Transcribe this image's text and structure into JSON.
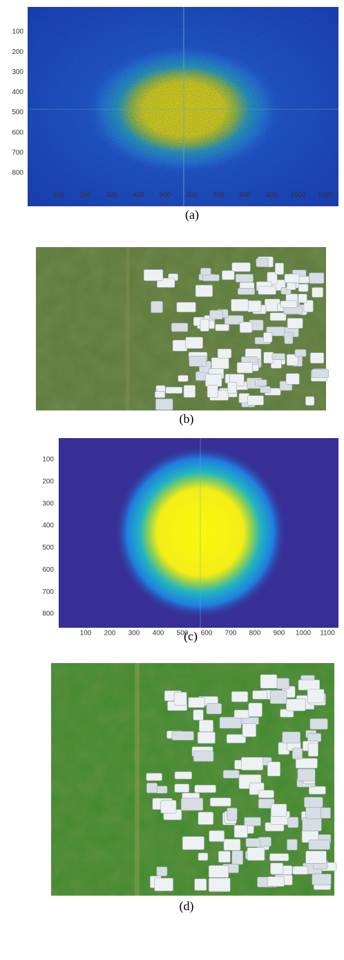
{
  "figure": {
    "panels": [
      {
        "caption": "(a)",
        "xticks": [
          100,
          200,
          300,
          400,
          500,
          600,
          700,
          800,
          900,
          1000,
          1100
        ],
        "yticks": [
          100,
          200,
          300,
          400,
          500,
          600,
          700,
          800
        ]
      },
      {
        "caption": "(b)"
      },
      {
        "caption": "(c)",
        "xticks": [
          100,
          200,
          300,
          400,
          500,
          600,
          700,
          800,
          900,
          1000,
          1100
        ],
        "yticks": [
          100,
          200,
          300,
          400,
          500,
          600,
          700,
          800
        ]
      },
      {
        "caption": "(d)"
      }
    ]
  }
}
